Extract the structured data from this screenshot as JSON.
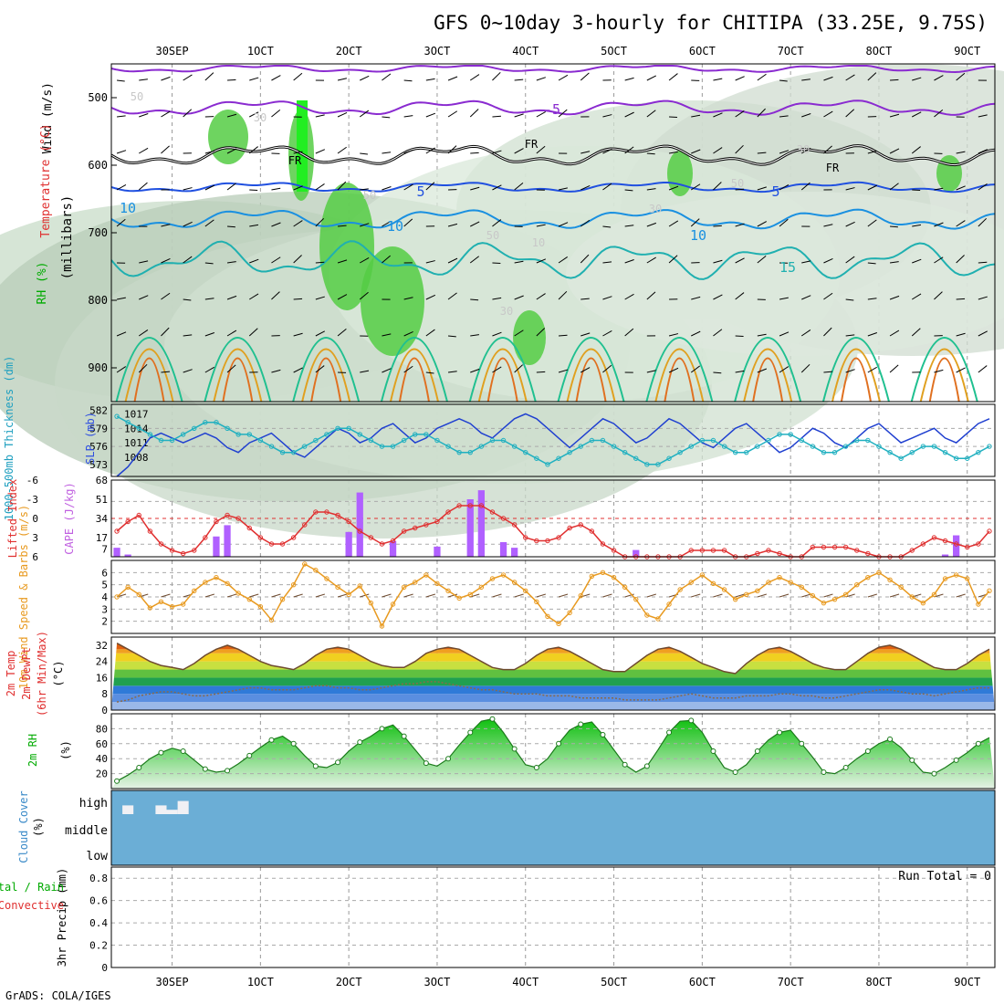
{
  "header": {
    "title": "GFS 0~10day 3-hourly for CHITIPA (33.25E, 9.75S)",
    "credit": "GrADS: COLA/IGES"
  },
  "time_axis": {
    "labels": [
      "30SEP",
      "1OCT",
      "2OCT",
      "3OCT",
      "4OCT",
      "5OCT",
      "6OCT",
      "7OCT",
      "8OCT",
      "9OCT"
    ],
    "steps": 80
  },
  "colors": {
    "green": "#3c3",
    "red": "#e03030",
    "purple": "#b060ff",
    "orange": "#e89a20",
    "blue": "#2040d0",
    "cyan": "#20b0c0",
    "cloud": "#6baed6",
    "brown": "#6e4a2f"
  },
  "chart_data": [
    {
      "type": "heatmap",
      "panel": "upper-air",
      "ylabels": [
        "Wind (m/s)",
        "Temperature (°C)",
        "RH (%)",
        "(millibars)"
      ],
      "yticks": [
        500,
        600,
        700,
        800,
        900
      ],
      "ylim": [
        950,
        450
      ],
      "annotations": [
        "-5",
        "FR",
        "FR",
        "FR",
        "5",
        "5",
        "10",
        "10",
        "10",
        "15",
        "10",
        "30",
        "30",
        "30",
        "30",
        "50",
        "50",
        "50",
        "50"
      ]
    },
    {
      "type": "line",
      "panel": "thickness-slp",
      "ylabels": [
        "1000-500mb Thickness (dm)",
        "SLP (mb)"
      ],
      "left_ticks": [
        573,
        576,
        579,
        582
      ],
      "right_ticks": [
        1008,
        1011,
        1014,
        1017
      ],
      "series": [
        {
          "name": "SLP",
          "axis": "right",
          "values": [
            1004,
            1006,
            1009,
            1012,
            1013,
            1012,
            1011,
            1012,
            1013,
            1012,
            1010,
            1009,
            1011,
            1012,
            1013,
            1011,
            1009,
            1008,
            1010,
            1012,
            1014,
            1013,
            1011,
            1012,
            1014,
            1015,
            1013,
            1011,
            1012,
            1014,
            1015,
            1016,
            1015,
            1013,
            1012,
            1014,
            1016,
            1017,
            1016,
            1014,
            1012,
            1010,
            1012,
            1014,
            1016,
            1015,
            1013,
            1011,
            1012,
            1014,
            1016,
            1015,
            1013,
            1011,
            1010,
            1012,
            1014,
            1015,
            1013,
            1011,
            1009,
            1010,
            1012,
            1014,
            1013,
            1011,
            1010,
            1012,
            1014,
            1015,
            1013,
            1011,
            1012,
            1013,
            1014,
            1012,
            1011,
            1013,
            1015,
            1016
          ]
        },
        {
          "name": "Thickness",
          "axis": "left",
          "values": [
            581,
            580,
            579,
            578,
            577,
            577,
            578,
            579,
            580,
            580,
            579,
            578,
            578,
            577,
            576,
            575,
            575,
            576,
            577,
            578,
            579,
            579,
            578,
            577,
            576,
            576,
            577,
            578,
            578,
            577,
            576,
            575,
            575,
            576,
            577,
            577,
            576,
            575,
            574,
            573,
            574,
            575,
            576,
            577,
            577,
            576,
            575,
            574,
            573,
            573,
            574,
            575,
            576,
            577,
            577,
            576,
            575,
            575,
            576,
            577,
            578,
            578,
            577,
            576,
            575,
            575,
            576,
            577,
            577,
            576,
            575,
            574,
            575,
            576,
            576,
            575,
            574,
            574,
            575,
            576
          ]
        }
      ]
    },
    {
      "type": "bar",
      "panel": "li-cape",
      "ylabels": [
        "Lifted Index",
        "CAPE (J/kg)"
      ],
      "left_ticks": [
        6,
        3,
        0,
        -3,
        -6
      ],
      "right_ticks": [
        7,
        17,
        34,
        51,
        68
      ],
      "series": [
        {
          "name": "CAPE",
          "values": [
            8,
            2,
            0,
            0,
            0,
            0,
            0,
            0,
            0,
            18,
            28,
            0,
            0,
            0,
            0,
            0,
            0,
            0,
            0,
            0,
            0,
            22,
            57,
            0,
            0,
            14,
            0,
            0,
            0,
            9,
            0,
            0,
            51,
            59,
            0,
            13,
            8,
            0,
            0,
            0,
            0,
            0,
            0,
            0,
            0,
            0,
            0,
            6,
            0,
            0,
            0,
            0,
            0,
            0,
            0,
            0,
            0,
            0,
            0,
            0,
            0,
            0,
            0,
            0,
            0,
            0,
            0,
            0,
            0,
            0,
            0,
            0,
            0,
            0,
            0,
            2,
            19,
            0,
            0,
            0
          ]
        },
        {
          "name": "Lifted Index",
          "values": [
            2,
            0.5,
            -0.5,
            2,
            4,
            5,
            5.5,
            5,
            3,
            0.5,
            -0.5,
            0,
            1.5,
            3,
            4,
            4,
            3,
            1,
            -1,
            -1,
            -0.5,
            0.5,
            2,
            3,
            4,
            3.5,
            2,
            1.5,
            1,
            0.5,
            -1,
            -2,
            -2,
            -2,
            -1,
            0,
            1,
            3,
            3.5,
            3.5,
            3,
            1.5,
            1,
            2,
            4,
            5,
            6,
            6,
            6,
            6,
            6,
            6,
            5,
            5,
            5,
            5,
            6,
            6,
            5.5,
            5,
            5.5,
            6,
            6,
            4.5,
            4.5,
            4.5,
            4.5,
            5,
            5.5,
            6,
            6,
            6,
            5,
            4,
            3,
            3.5,
            4,
            4.5,
            4,
            2
          ]
        }
      ]
    },
    {
      "type": "line",
      "panel": "wind10m",
      "ylabels": [
        "10m Wind Speed & Barbs (m/s)"
      ],
      "yticks": [
        2,
        3,
        4,
        5,
        6
      ],
      "series": [
        {
          "name": "Wind Speed",
          "values": [
            4,
            4.8,
            4.2,
            3.1,
            3.6,
            3.2,
            3.4,
            4.5,
            5.2,
            5.6,
            5.1,
            4.3,
            3.8,
            3.2,
            2.1,
            3.8,
            5,
            6.7,
            6.2,
            5.5,
            4.8,
            4.2,
            4.9,
            3.5,
            1.6,
            3.4,
            4.8,
            5.2,
            5.8,
            5.1,
            4.5,
            3.9,
            4.2,
            4.8,
            5.5,
            5.8,
            5.2,
            4.5,
            3.6,
            2.4,
            1.8,
            2.7,
            4.1,
            5.7,
            6,
            5.6,
            4.8,
            3.8,
            2.5,
            2.2,
            3.4,
            4.6,
            5.2,
            5.8,
            5.1,
            4.6,
            3.8,
            4.2,
            4.5,
            5.2,
            5.6,
            5.2,
            4.8,
            4.1,
            3.5,
            3.8,
            4.2,
            5,
            5.6,
            6,
            5.4,
            4.8,
            4,
            3.5,
            4.2,
            5.5,
            5.8,
            5.5,
            3.4,
            4.5
          ]
        }
      ]
    },
    {
      "type": "area",
      "panel": "temp2m",
      "ylabels": [
        "2m Temp",
        "2m DewPt",
        "(6hr Min/Max)",
        "(°C)"
      ],
      "yticks": [
        0,
        8,
        16,
        24,
        32
      ],
      "series": [
        {
          "name": "2m Temp",
          "values": [
            33,
            30,
            27,
            24,
            22,
            21,
            20,
            23,
            27,
            30,
            32,
            30,
            27,
            24,
            22,
            21,
            20,
            23,
            27,
            30,
            31,
            30,
            27,
            24,
            22,
            21,
            21,
            24,
            28,
            30,
            31,
            30,
            27,
            24,
            21,
            20,
            20,
            23,
            27,
            30,
            31,
            29,
            26,
            23,
            20,
            19,
            19,
            23,
            27,
            30,
            31,
            29,
            26,
            23,
            21,
            19,
            18,
            23,
            27,
            30,
            31,
            29,
            26,
            23,
            21,
            20,
            20,
            24,
            28,
            31,
            32,
            30,
            27,
            24,
            21,
            20,
            20,
            23,
            27,
            30
          ]
        },
        {
          "name": "2m DewPt",
          "values": [
            4,
            5,
            7,
            8,
            9,
            9,
            8,
            7,
            7,
            8,
            9,
            10,
            11,
            11,
            10,
            10,
            10,
            11,
            12,
            12,
            11,
            11,
            10,
            10,
            11,
            12,
            13,
            13,
            14,
            14,
            13,
            12,
            11,
            10,
            10,
            9,
            8,
            8,
            8,
            7,
            7,
            7,
            6,
            6,
            6,
            6,
            5,
            5,
            5,
            5,
            6,
            7,
            8,
            7,
            6,
            6,
            6,
            7,
            7,
            7,
            8,
            8,
            7,
            7,
            6,
            6,
            7,
            8,
            9,
            10,
            10,
            9,
            8,
            8,
            7,
            8,
            9,
            10,
            11,
            11
          ]
        }
      ]
    },
    {
      "type": "area",
      "panel": "rh2m",
      "ylabels": [
        "2m RH",
        "(%)"
      ],
      "yticks": [
        20,
        40,
        60,
        80
      ],
      "series": [
        {
          "name": "2m RH",
          "values": [
            10,
            18,
            28,
            40,
            48,
            54,
            50,
            38,
            26,
            22,
            24,
            33,
            44,
            55,
            65,
            70,
            60,
            44,
            30,
            28,
            35,
            50,
            62,
            70,
            80,
            85,
            70,
            52,
            34,
            30,
            40,
            58,
            75,
            90,
            93,
            75,
            53,
            32,
            28,
            40,
            60,
            78,
            86,
            89,
            72,
            52,
            32,
            22,
            30,
            52,
            75,
            90,
            91,
            75,
            50,
            28,
            22,
            32,
            50,
            65,
            75,
            78,
            60,
            42,
            22,
            20,
            28,
            40,
            50,
            60,
            66,
            55,
            38,
            22,
            20,
            28,
            38,
            48,
            60,
            68
          ]
        }
      ]
    },
    {
      "type": "heatmap",
      "panel": "cloud",
      "ylabels": [
        "Cloud Cover",
        "(%)"
      ],
      "row_labels": [
        "high",
        "middle",
        "low"
      ],
      "series": [
        {
          "name": "high",
          "values": [
            0,
            40,
            0,
            0,
            40,
            20,
            60,
            0,
            0,
            0,
            0,
            0,
            0,
            0,
            0,
            0,
            0,
            0,
            0,
            0,
            0,
            0,
            0,
            0,
            0,
            0,
            0,
            0,
            0,
            0,
            0,
            0,
            0,
            0,
            0,
            0,
            0,
            0,
            0,
            0,
            0,
            0,
            0,
            0,
            0,
            0,
            0,
            0,
            0,
            0,
            0,
            0,
            0,
            0,
            0,
            0,
            0,
            0,
            0,
            0,
            0,
            0,
            0,
            0,
            0,
            0,
            0,
            0,
            0,
            0,
            0,
            0,
            0,
            0,
            0,
            0,
            0,
            0,
            0,
            0
          ]
        },
        {
          "name": "middle",
          "values": [
            0,
            0,
            0,
            0,
            0,
            0,
            0,
            0,
            0,
            0,
            0,
            0,
            0,
            0,
            0,
            0,
            0,
            0,
            0,
            0,
            0,
            0,
            0,
            0,
            0,
            0,
            0,
            0,
            0,
            0,
            0,
            0,
            0,
            0,
            0,
            0,
            0,
            0,
            0,
            0,
            0,
            0,
            0,
            0,
            0,
            0,
            0,
            0,
            0,
            0,
            0,
            0,
            0,
            0,
            0,
            0,
            0,
            0,
            0,
            0,
            0,
            0,
            0,
            0,
            0,
            0,
            0,
            0,
            0,
            0,
            0,
            0,
            0,
            0,
            0,
            0,
            0,
            0,
            0,
            0
          ]
        },
        {
          "name": "low",
          "values": [
            0,
            0,
            0,
            0,
            0,
            0,
            0,
            0,
            0,
            0,
            0,
            0,
            0,
            0,
            0,
            0,
            0,
            0,
            0,
            0,
            0,
            0,
            0,
            0,
            0,
            0,
            0,
            0,
            0,
            0,
            0,
            0,
            0,
            0,
            0,
            0,
            0,
            0,
            0,
            0,
            0,
            0,
            0,
            0,
            0,
            0,
            0,
            0,
            0,
            0,
            0,
            0,
            0,
            0,
            0,
            0,
            0,
            0,
            0,
            0,
            0,
            0,
            0,
            0,
            0,
            0,
            0,
            0,
            0,
            0,
            0,
            0,
            0,
            0,
            0,
            0,
            0,
            0,
            0,
            0
          ]
        }
      ]
    },
    {
      "type": "bar",
      "panel": "precip",
      "ylabels": [
        "Total / Rain",
        "Convective",
        "3hr Precip (mm)"
      ],
      "yticks": [
        0,
        0.2,
        0.4,
        0.6,
        0.8
      ],
      "ylim": [
        0,
        0.9
      ],
      "run_total": "Run Total = 0",
      "series": [
        {
          "name": "3hr Precip",
          "values": []
        }
      ]
    }
  ]
}
